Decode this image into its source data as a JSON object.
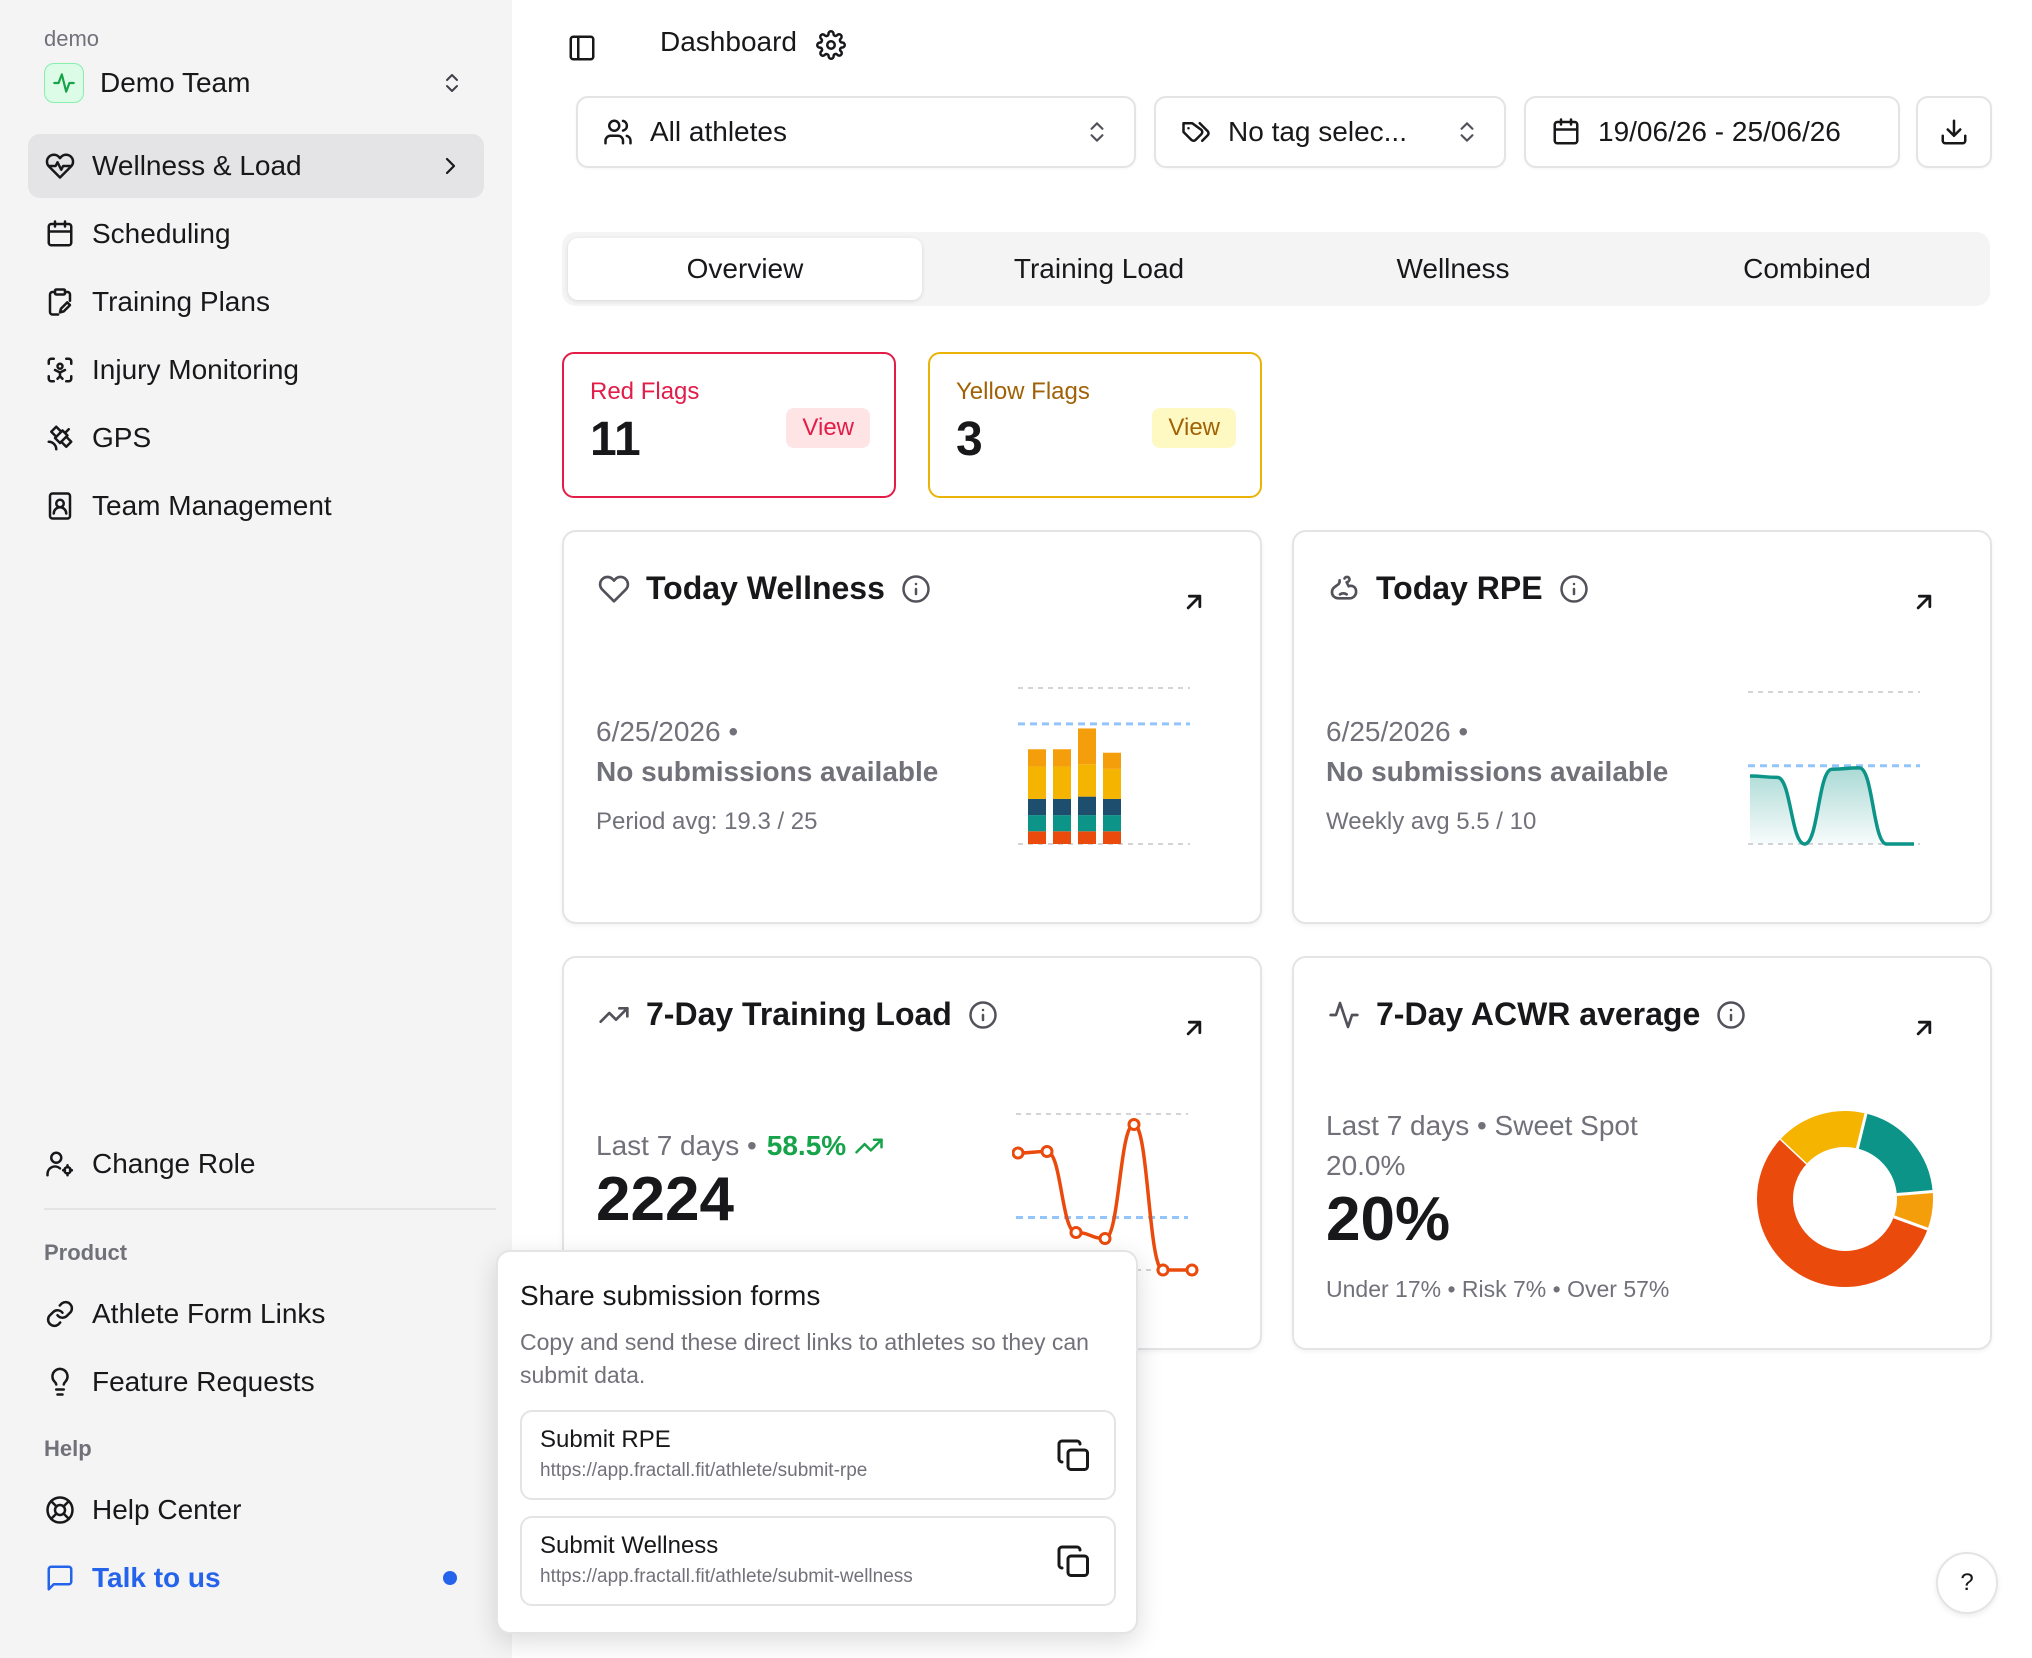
{
  "workspace": {
    "org": "demo",
    "team": "Demo Team"
  },
  "sidebar": {
    "items": [
      {
        "label": "Wellness & Load",
        "icon": "heart-pulse-icon",
        "active": true
      },
      {
        "label": "Scheduling",
        "icon": "calendar-icon"
      },
      {
        "label": "Training Plans",
        "icon": "clipboard-edit-icon"
      },
      {
        "label": "Injury Monitoring",
        "icon": "scan-person-icon"
      },
      {
        "label": "GPS",
        "icon": "satellite-icon"
      },
      {
        "label": "Team Management",
        "icon": "contact-book-icon"
      }
    ],
    "change_role": "Change Role",
    "product_heading": "Product",
    "product_items": [
      {
        "label": "Athlete Form Links",
        "icon": "link-icon"
      },
      {
        "label": "Feature Requests",
        "icon": "lightbulb-icon"
      }
    ],
    "help_heading": "Help",
    "help_items": [
      {
        "label": "Help Center",
        "icon": "lifebuoy-icon"
      },
      {
        "label": "Talk to us",
        "icon": "message-square-icon"
      }
    ]
  },
  "header": {
    "title": "Dashboard"
  },
  "filters": {
    "athletes": "All athletes",
    "tags": "No tag selec...",
    "date_range": "19/06/26 - 25/06/26"
  },
  "tabs": [
    "Overview",
    "Training Load",
    "Wellness",
    "Combined"
  ],
  "active_tab": "Overview",
  "flags": {
    "red": {
      "title": "Red Flags",
      "count": "11",
      "action": "View"
    },
    "yellow": {
      "title": "Yellow Flags",
      "count": "3",
      "action": "View"
    }
  },
  "cards": {
    "wellness": {
      "title": "Today Wellness",
      "date": "6/25/2026 •",
      "status": "No submissions available",
      "footer": "Period avg: 19.3 / 25"
    },
    "rpe": {
      "title": "Today RPE",
      "date": "6/25/2026 •",
      "status": "No submissions available",
      "footer": "Weekly avg 5.5 / 10"
    },
    "training_load": {
      "title": "7-Day Training Load",
      "period": "Last 7 days •",
      "change": "58.5%",
      "value": "2224"
    },
    "acwr": {
      "title": "7-Day ACWR average",
      "subtitle": "Last 7 days • Sweet Spot",
      "sub_value": "20.0%",
      "value": "20%",
      "breakdown": "Under 17% • Risk 7% • Over 57%"
    }
  },
  "popover": {
    "title": "Share submission forms",
    "description": "Copy and send these direct links to athletes so they can submit data.",
    "links": [
      {
        "label": "Submit RPE",
        "url": "https://app.fractall.fit/athlete/submit-rpe"
      },
      {
        "label": "Submit Wellness",
        "url": "https://app.fractall.fit/athlete/submit-wellness"
      }
    ]
  },
  "help_button": "?",
  "colors": {
    "accent_blue": "#2563eb",
    "red_flag": "#e11d48",
    "yellow_flag": "#eab308",
    "teal": "#0d9488",
    "orange": "#ea4a0c",
    "amber": "#f59e0b",
    "green": "#16a34a"
  },
  "chart_data": [
    {
      "type": "bar",
      "stacked": true,
      "series_colors": [
        "#ea4a0c",
        "#0d9488",
        "#1e4e6e",
        "#f5b400",
        "#f59e0b"
      ],
      "bars": [
        [
          0.11,
          0.14,
          0.14,
          0.28,
          0.15
        ],
        [
          0.11,
          0.14,
          0.14,
          0.28,
          0.15
        ],
        [
          0.11,
          0.14,
          0.16,
          0.28,
          0.31
        ],
        [
          0.11,
          0.14,
          0.14,
          0.26,
          0.14
        ]
      ],
      "reference_line": 0.77,
      "grid": true
    },
    {
      "type": "area",
      "values": [
        0.5,
        0.49,
        0.0,
        0.55,
        0.56,
        0.0,
        0.0
      ],
      "reference_line": 0.5,
      "grid": true
    },
    {
      "type": "line",
      "values": [
        0.78,
        0.79,
        0.25,
        0.21,
        0.97,
        0.0,
        0.0
      ],
      "reference_line": 0.35,
      "grid": true
    },
    {
      "type": "pie",
      "donut": true,
      "slices": [
        {
          "name": "Over",
          "value": 57,
          "color": "#ea4a0c"
        },
        {
          "name": "Risk",
          "value": 7,
          "color": "#f59e0b"
        },
        {
          "name": "Sweet Spot",
          "value": 20,
          "color": "#0d9488"
        },
        {
          "name": "Under",
          "value": 17,
          "color": "#f5b400"
        }
      ]
    }
  ]
}
